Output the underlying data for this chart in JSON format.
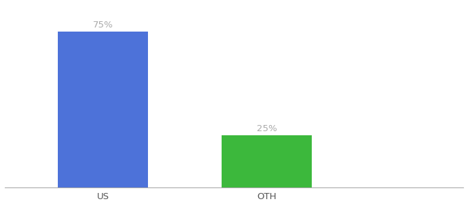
{
  "categories": [
    "US",
    "OTH"
  ],
  "values": [
    75,
    25
  ],
  "bar_colors": [
    "#4d72d9",
    "#3cb83c"
  ],
  "label_color": "#aaaaaa",
  "axis_color": "#555555",
  "tick_color": "#555555",
  "background_color": "#ffffff",
  "bar_labels": [
    "75%",
    "25%"
  ],
  "label_fontsize": 9.5,
  "tick_fontsize": 9.5,
  "ylim": [
    0,
    88
  ],
  "bar_width": 0.55,
  "x_positions": [
    1,
    2
  ],
  "xlim": [
    0.4,
    3.2
  ]
}
